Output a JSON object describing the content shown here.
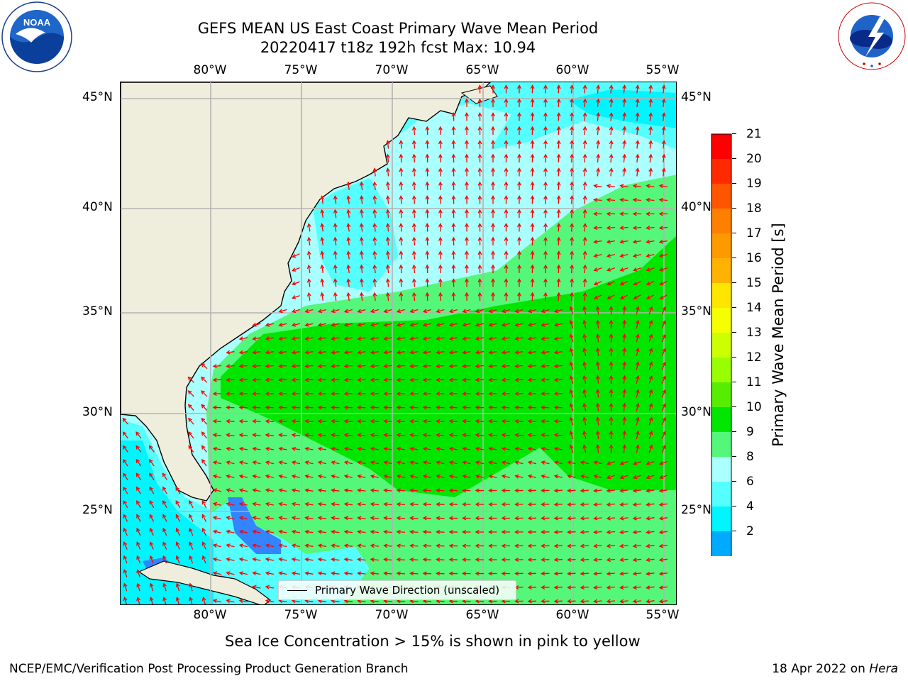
{
  "title": {
    "line1": "GEFS MEAN US East Coast Primary Wave Mean Period",
    "line2": "20220417 t18z 192h fcst   Max: 10.94"
  },
  "logos": {
    "noaa": {
      "text": "NOAA",
      "ring_text": "NATIONAL OCEANIC AND ATMOSPHERIC ADMINISTRATION · U.S. DEPARTMENT OF COMMERCE"
    },
    "nws": {
      "ring_text": "NATIONAL WEATHER SERVICE"
    }
  },
  "axes": {
    "lon_labels": [
      "80°W",
      "75°W",
      "70°W",
      "65°W",
      "60°W",
      "55°W"
    ],
    "lat_labels": [
      "45°N",
      "40°N",
      "35°N",
      "30°N",
      "25°N"
    ]
  },
  "legend": {
    "label": "Primary Wave Direction (unscaled)"
  },
  "colorbar": {
    "label": "Primary Wave Mean Period [s]",
    "ticks": [
      "21",
      "20",
      "19",
      "18",
      "17",
      "16",
      "15",
      "14",
      "13",
      "12",
      "11",
      "10",
      "9",
      "8",
      "6",
      "4",
      "2"
    ],
    "colors": [
      "#ff0000",
      "#ff2a00",
      "#ff5500",
      "#ff8000",
      "#ff9900",
      "#ffb300",
      "#ffe600",
      "#f5ff00",
      "#ccff00",
      "#99ff00",
      "#55ee00",
      "#00e600",
      "#55f77a",
      "#aaffff",
      "#55ffff",
      "#00f5ff",
      "#00aaff",
      "#0066ff"
    ],
    "under_color": "#0000ff"
  },
  "map_colors": {
    "land": "#efeedc",
    "water_9_10": "#55f77a",
    "water_10_11": "#00e600",
    "water_8_9": "#aaffff",
    "water_6_8": "#55ffff",
    "water_4_6": "#00f5ff",
    "water_2_4": "#3385ff",
    "arrow": "#ff0000",
    "grid": "#b3b3b3"
  },
  "note": "Sea Ice Concentration > 15% is shown in pink to yellow",
  "footer": {
    "left": "NCEP/EMC/Verification Post Processing Product Generation Branch",
    "right_date": "18 Apr 2022 on",
    "right_host": "Hera"
  }
}
